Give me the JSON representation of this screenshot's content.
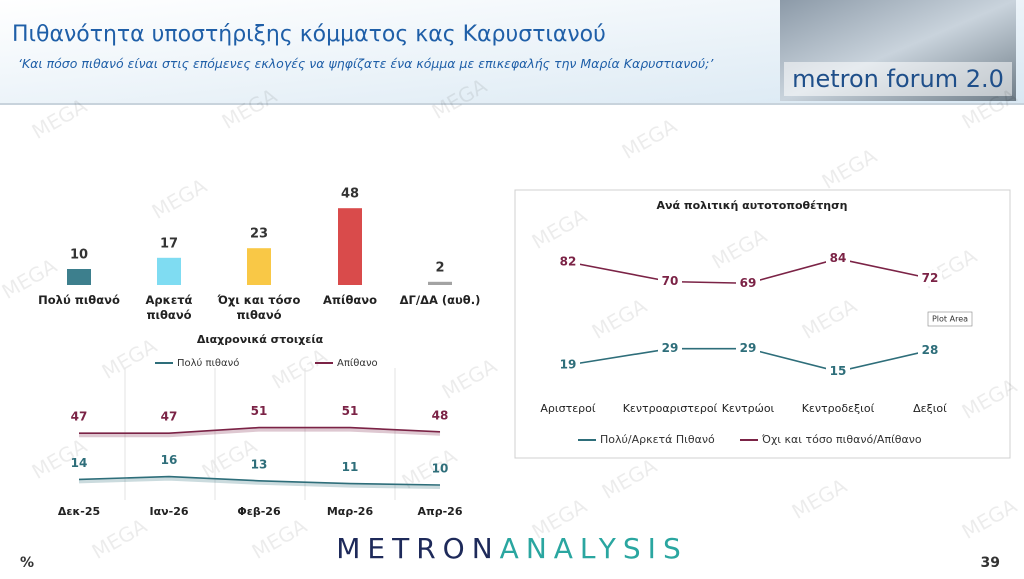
{
  "header": {
    "title": "Πιθανότητα υποστήριξης κόμματος κας Καρυστιανού",
    "subtitle": "‘Και πόσο πιθανό είναι στις επόμενες εκλογές να ψηφίζατε ένα κόμμα με επικεφαλής την Μαρία Καρυστιανού;’",
    "logo": "metron forum 2.0"
  },
  "watermark": "MEGA",
  "chart_data": [
    {
      "type": "bar",
      "categories": [
        "Πολύ πιθανό",
        "Αρκετά πιθανό",
        "Όχι και τόσο πιθανό",
        "Απίθανο",
        "ΔΓ/ΔΑ (αυθ.)"
      ],
      "values": [
        10,
        17,
        23,
        48,
        2
      ],
      "colors": [
        "#3d7f8d",
        "#7fdcf2",
        "#f9c846",
        "#d94b4b",
        "#a3a3a3"
      ]
    },
    {
      "type": "line",
      "title": "Διαχρονικά στοιχεία",
      "legend": "top",
      "categories": [
        "Δεκ-25",
        "Ιαν-26",
        "Φεβ-26",
        "Μαρ-26",
        "Απρ-26"
      ],
      "series": [
        {
          "name": "Πολύ πιθανό",
          "color": "#2e6e7a",
          "values": [
            14,
            16,
            13,
            11,
            10
          ]
        },
        {
          "name": "Απίθανο",
          "color": "#7b2346",
          "values": [
            47,
            47,
            51,
            51,
            48
          ]
        }
      ]
    },
    {
      "type": "line",
      "title": "Ανά πολιτική αυτοτοποθέτηση",
      "legend": "bottom",
      "categories": [
        "Αριστεροί",
        "Κεντροαριστεροί",
        "Κεντρώοι",
        "Κεντροδεξιοί",
        "Δεξιοί"
      ],
      "series": [
        {
          "name": "Πολύ/Αρκετά Πιθανό",
          "color": "#2e6e7a",
          "values": [
            19,
            29,
            29,
            15,
            28
          ]
        },
        {
          "name": "Όχι και τόσο πιθανό/Απίθανο",
          "color": "#7b2346",
          "values": [
            82,
            70,
            69,
            84,
            72
          ]
        }
      ],
      "annotation": "Plot Area"
    }
  ],
  "footer": {
    "unit": "%",
    "brand_left": "METRON",
    "brand_right": "ANALYSIS",
    "page": "39"
  }
}
